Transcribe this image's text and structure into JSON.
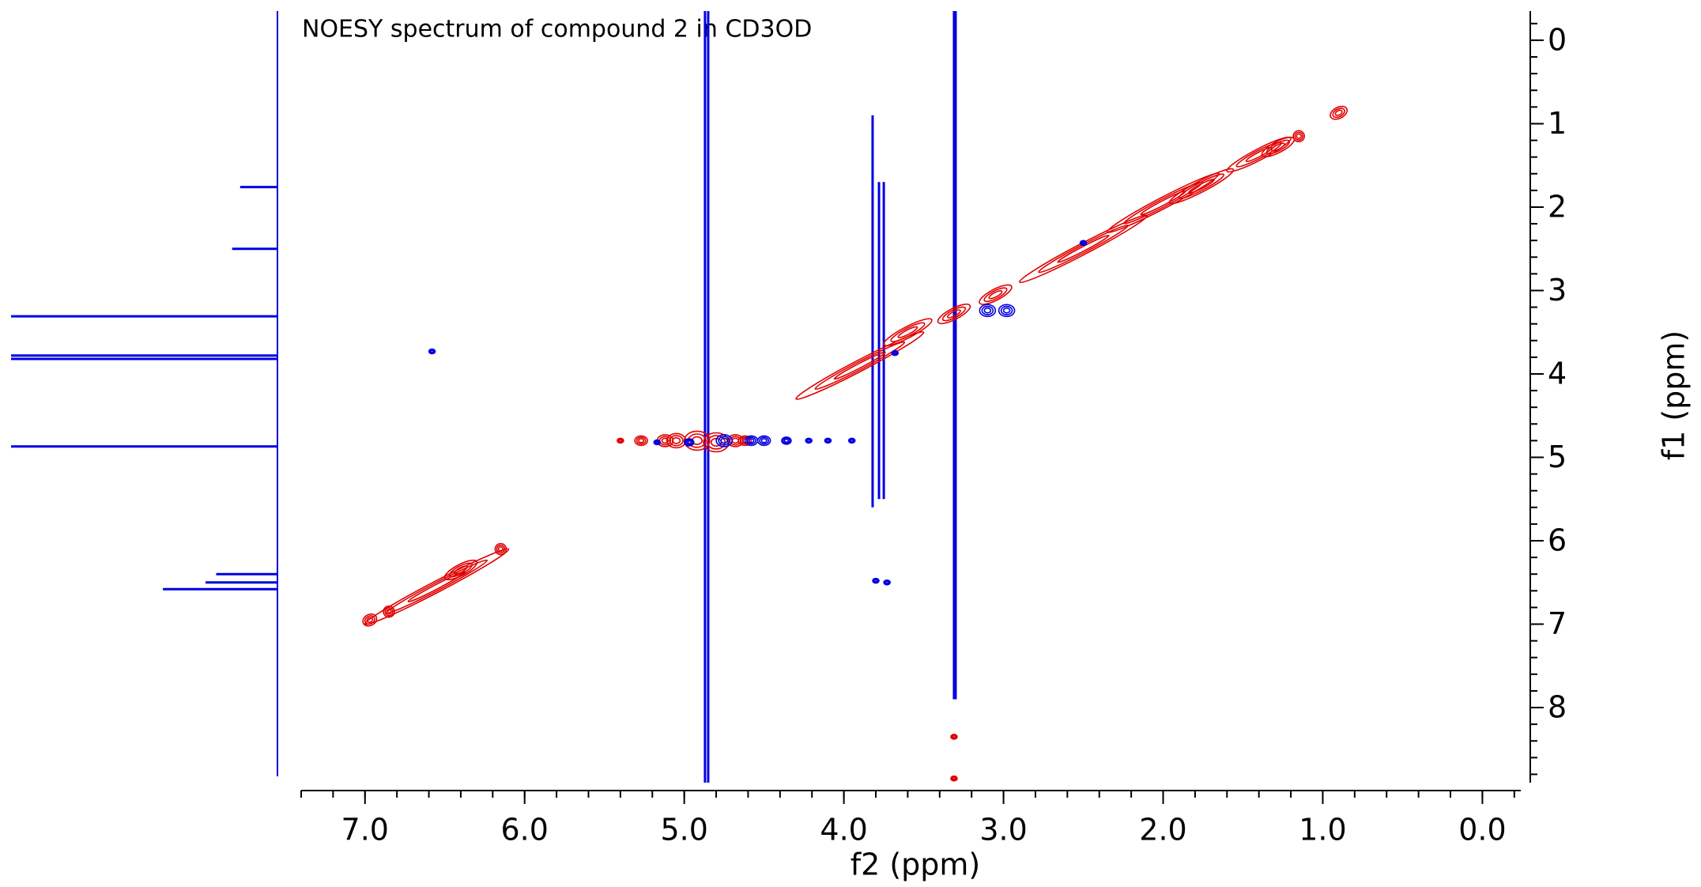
{
  "chart_data": {
    "type": "contour",
    "title": "NOESY spectrum of compound 2 in CD3OD",
    "xlabel": "f2 (ppm)",
    "ylabel": "f1 (ppm)",
    "xlim": [
      7.4,
      -0.3
    ],
    "ylim": [
      -0.35,
      8.9
    ],
    "xticks": [
      {
        "value": 7,
        "label": "7.0"
      },
      {
        "value": 6,
        "label": "6.0"
      },
      {
        "value": 5,
        "label": "5.0"
      },
      {
        "value": 4,
        "label": "4.0"
      },
      {
        "value": 3,
        "label": "3.0"
      },
      {
        "value": 2,
        "label": "2.0"
      },
      {
        "value": 1,
        "label": "1.0"
      },
      {
        "value": 0,
        "label": "0.0"
      }
    ],
    "yticks": [
      0,
      1,
      2,
      3,
      4,
      5,
      6,
      7,
      8
    ],
    "minor_step": 0.2,
    "series": [
      {
        "color": "#e00000",
        "diagonal": true,
        "x": [
          6.97,
          6.85,
          6.55,
          6.4,
          6.15,
          3.9,
          3.6,
          3.31,
          3.05,
          2.5,
          2.0,
          1.76,
          1.4,
          1.28,
          1.15,
          0.9
        ],
        "y": [
          6.95,
          6.85,
          6.55,
          6.35,
          6.1,
          3.9,
          3.5,
          3.28,
          3.05,
          2.5,
          1.95,
          1.75,
          1.37,
          1.28,
          1.15,
          0.87
        ],
        "extent": [
          0.04,
          0.03,
          0.45,
          0.1,
          0.03,
          0.4,
          0.15,
          0.1,
          0.1,
          0.4,
          0.35,
          0.2,
          0.2,
          0.1,
          0.03,
          0.05
        ]
      },
      {
        "color": "#e00000",
        "diagonal": false,
        "x": [
          5.4,
          5.27,
          5.12,
          5.05,
          4.92,
          4.8,
          4.68,
          4.62,
          3.31,
          3.31
        ],
        "y": [
          4.8,
          4.8,
          4.8,
          4.8,
          4.8,
          4.82,
          4.8,
          4.8,
          8.35,
          8.85
        ],
        "extent": [
          0.02,
          0.04,
          0.05,
          0.06,
          0.08,
          0.08,
          0.05,
          0.04,
          0.02,
          0.01
        ]
      },
      {
        "color": "#0000e0",
        "diagonal": false,
        "x": [
          5.17,
          4.97,
          4.75,
          4.58,
          4.5,
          4.36,
          4.22,
          4.1,
          3.95,
          6.58,
          3.1,
          2.98,
          3.8,
          3.73,
          3.68,
          2.5
        ],
        "y": [
          4.82,
          4.82,
          4.8,
          4.8,
          4.8,
          4.8,
          4.8,
          4.8,
          4.8,
          3.73,
          3.24,
          3.24,
          6.48,
          6.5,
          3.75,
          2.43
        ],
        "extent": [
          0.02,
          0.03,
          0.05,
          0.04,
          0.04,
          0.03,
          0.02,
          0.02,
          0.02,
          0.01,
          0.05,
          0.05,
          0.02,
          0.02,
          0.02,
          0.01
        ]
      }
    ],
    "streaks": {
      "color": "#0000e0",
      "x": [
        4.87,
        4.85,
        3.31,
        3.3,
        3.82,
        3.78,
        3.75
      ],
      "y_start": [
        -0.35,
        -0.35,
        -0.35,
        -0.35,
        0.9,
        1.7,
        1.7
      ],
      "y_end": [
        8.9,
        8.9,
        7.9,
        7.9,
        5.6,
        5.5,
        5.5
      ]
    },
    "projection": {
      "color": "#0000e0",
      "y": [
        1.76,
        2.5,
        3.31,
        3.78,
        3.82,
        4.87,
        6.4,
        6.5,
        6.58
      ],
      "values": [
        0.14,
        0.17,
        1,
        1,
        1,
        1,
        0.23,
        0.27,
        0.43
      ]
    }
  }
}
